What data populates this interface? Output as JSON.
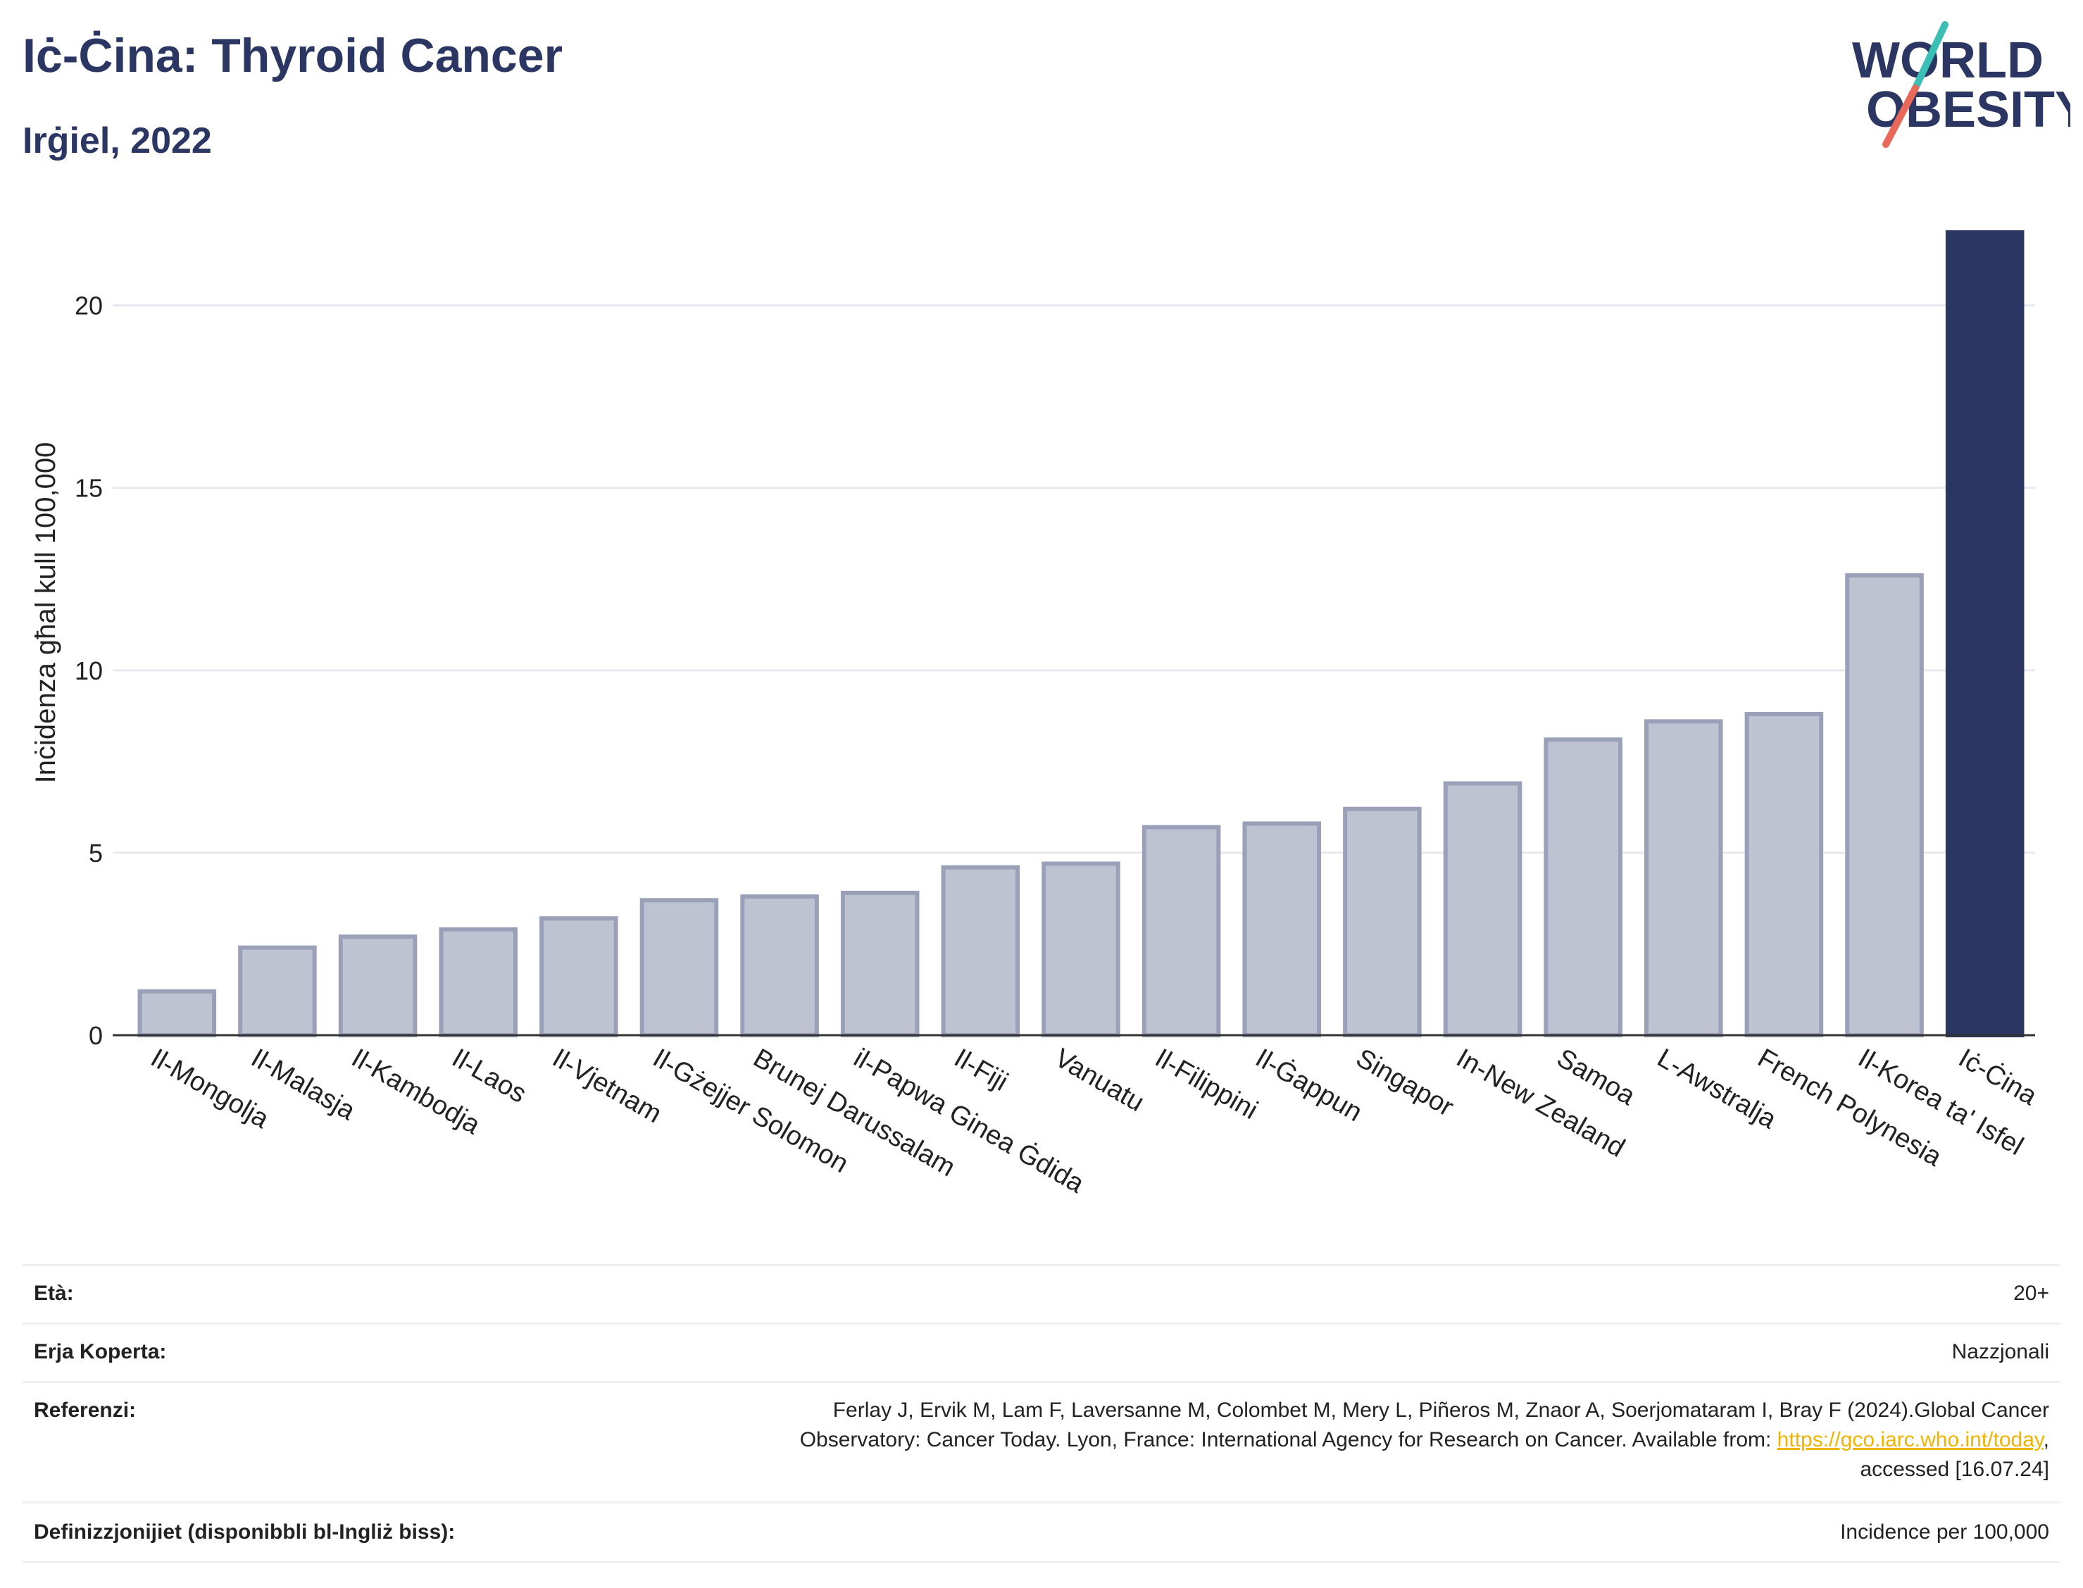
{
  "header": {
    "title": "Iċ-Ċina: Thyroid Cancer",
    "subtitle": "Irġiel, 2022"
  },
  "logo": {
    "line1": "WORLD",
    "line2": "OBESITY",
    "accent_teal": "#3bbfb5",
    "accent_coral": "#e8685a"
  },
  "chart_data": {
    "type": "bar",
    "ylabel": "Inċidenza għal kull 100,000",
    "ylim": [
      0,
      22
    ],
    "yticks": [
      0,
      5,
      10,
      15,
      20
    ],
    "grid": true,
    "categories": [
      "Il-Mongolja",
      "Il-Malasja",
      "Il-Kambodja",
      "Il-Laos",
      "Il-Vjetnam",
      "Il-Gżejjer Solomon",
      "Brunej Darussalam",
      "il-Papwa Ginea Ġdida",
      "Il-Fiji",
      "Vanuatu",
      "Il-Filippini",
      "Il-Ġappun",
      "Singapor",
      "In-New Zealand",
      "Samoa",
      "L-Awstralja",
      "French Polynesia",
      "Il-Korea ta' Isfel",
      "Iċ-Ċina"
    ],
    "values": [
      1.2,
      2.4,
      2.7,
      2.9,
      3.2,
      3.7,
      3.8,
      3.9,
      4.6,
      4.7,
      5.7,
      5.8,
      6.2,
      6.9,
      8.1,
      8.6,
      8.8,
      12.6,
      22.0
    ],
    "highlight": "Iċ-Ċina",
    "colors": {
      "bar": "#bfc3d1",
      "bar_border": "#9aa0b8",
      "highlight": "#2b3663"
    }
  },
  "info": {
    "age_label": "Età:",
    "age_value": "20+",
    "area_label": "Erja Koperta:",
    "area_value": "Nazzjonali",
    "ref_label": "Referenzi:",
    "ref_line1": "Ferlay J, Ervik M, Lam F, Laversanne M, Colombet M, Mery L, Piñeros M, Znaor A, Soerjomataram I, Bray F (2024).Global Cancer",
    "ref_line2_pre": "Observatory: Cancer Today. Lyon, France: International Agency for Research on Cancer. Available from: ",
    "ref_link": "https://gco.iarc.who.int/today",
    "ref_line2_post": ",",
    "ref_line3": "accessed [16.07.24]",
    "def_label": "Definizzjonijiet (disponibbli bl-Ingliż biss):",
    "def_value": "Incidence per 100,000"
  }
}
